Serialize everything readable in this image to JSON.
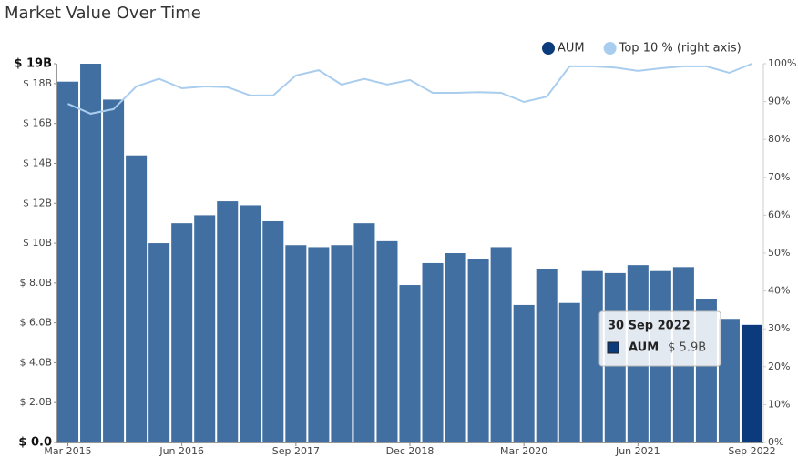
{
  "chart_data": {
    "type": "bar",
    "title": "Market Value Over Time",
    "categories": [
      "Mar 2015",
      null,
      null,
      null,
      null,
      "Jun 2016",
      null,
      null,
      null,
      null,
      "Sep 2017",
      null,
      null,
      null,
      null,
      "Dec 2018",
      null,
      null,
      null,
      null,
      "Mar 2020",
      null,
      null,
      null,
      null,
      "Jun 2021",
      null,
      null,
      null,
      null,
      "Sep 2022"
    ],
    "series": [
      {
        "name": "AUM",
        "type": "bar",
        "color": "#0b3b7c",
        "colors": [
          "#426fa1",
          "#426fa1",
          "#426fa1",
          "#426fa1",
          "#426fa1",
          "#426fa1",
          "#426fa1",
          "#426fa1",
          "#426fa1",
          "#426fa1",
          "#426fa1",
          "#426fa1",
          "#426fa1",
          "#426fa1",
          "#426fa1",
          "#426fa1",
          "#426fa1",
          "#426fa1",
          "#426fa1",
          "#426fa1",
          "#426fa1",
          "#426fa1",
          "#426fa1",
          "#426fa1",
          "#426fa1",
          "#426fa1",
          "#426fa1",
          "#426fa1",
          "#426fa1",
          "#426fa1",
          "#0b3b7c"
        ],
        "values": [
          18.1,
          19.0,
          17.2,
          14.4,
          10.0,
          11.0,
          11.4,
          12.1,
          11.9,
          11.1,
          9.9,
          9.8,
          9.9,
          11.0,
          10.1,
          7.9,
          9.0,
          9.5,
          9.2,
          9.8,
          6.9,
          8.7,
          7.0,
          8.6,
          8.5,
          8.9,
          8.6,
          8.8,
          7.2,
          6.2,
          5.9
        ]
      },
      {
        "name": "Top 10 % (right axis)",
        "type": "line",
        "axis": "y2",
        "color": "#a9cdee",
        "values": [
          89.4,
          86.8,
          88,
          94,
          96,
          93.5,
          94,
          93.8,
          91.6,
          91.6,
          96.9,
          98.3,
          94.5,
          96,
          94.5,
          95.7,
          92.3,
          92.3,
          92.5,
          92.3,
          89.9,
          91.3,
          99.3,
          99.3,
          99,
          98.1,
          98.8,
          99.3,
          99.3,
          97.6,
          100
        ]
      }
    ],
    "ylim": [
      0,
      19
    ],
    "yticks": [
      {
        "value": 0,
        "label": "$ 0.0"
      },
      {
        "value": 2,
        "label": "$ 2.0B"
      },
      {
        "value": 4,
        "label": "$ 4.0B"
      },
      {
        "value": 6,
        "label": "$ 6.0B"
      },
      {
        "value": 8,
        "label": "$ 8.0B"
      },
      {
        "value": 10,
        "label": "$ 10B"
      },
      {
        "value": 12,
        "label": "$ 12B"
      },
      {
        "value": 14,
        "label": "$ 14B"
      },
      {
        "value": 16,
        "label": "$ 16B"
      },
      {
        "value": 18,
        "label": "$ 18B"
      },
      {
        "value": 19,
        "label": "$ 19B"
      }
    ],
    "y2lim": [
      0,
      100
    ],
    "y2ticks": [
      {
        "value": 0,
        "label": "0%"
      },
      {
        "value": 10,
        "label": "10%"
      },
      {
        "value": 20,
        "label": "20%"
      },
      {
        "value": 30,
        "label": "30%"
      },
      {
        "value": 40,
        "label": "40%"
      },
      {
        "value": 50,
        "label": "50%"
      },
      {
        "value": 60,
        "label": "60%"
      },
      {
        "value": 70,
        "label": "70%"
      },
      {
        "value": 80,
        "label": "80%"
      },
      {
        "value": 90,
        "label": "90%"
      },
      {
        "value": 100,
        "label": "100%"
      }
    ],
    "legend": "top-right",
    "tooltip": {
      "title": "30 Sep 2022",
      "name": "AUM",
      "value": 5.9,
      "value_label": "$ 5.9B"
    }
  }
}
